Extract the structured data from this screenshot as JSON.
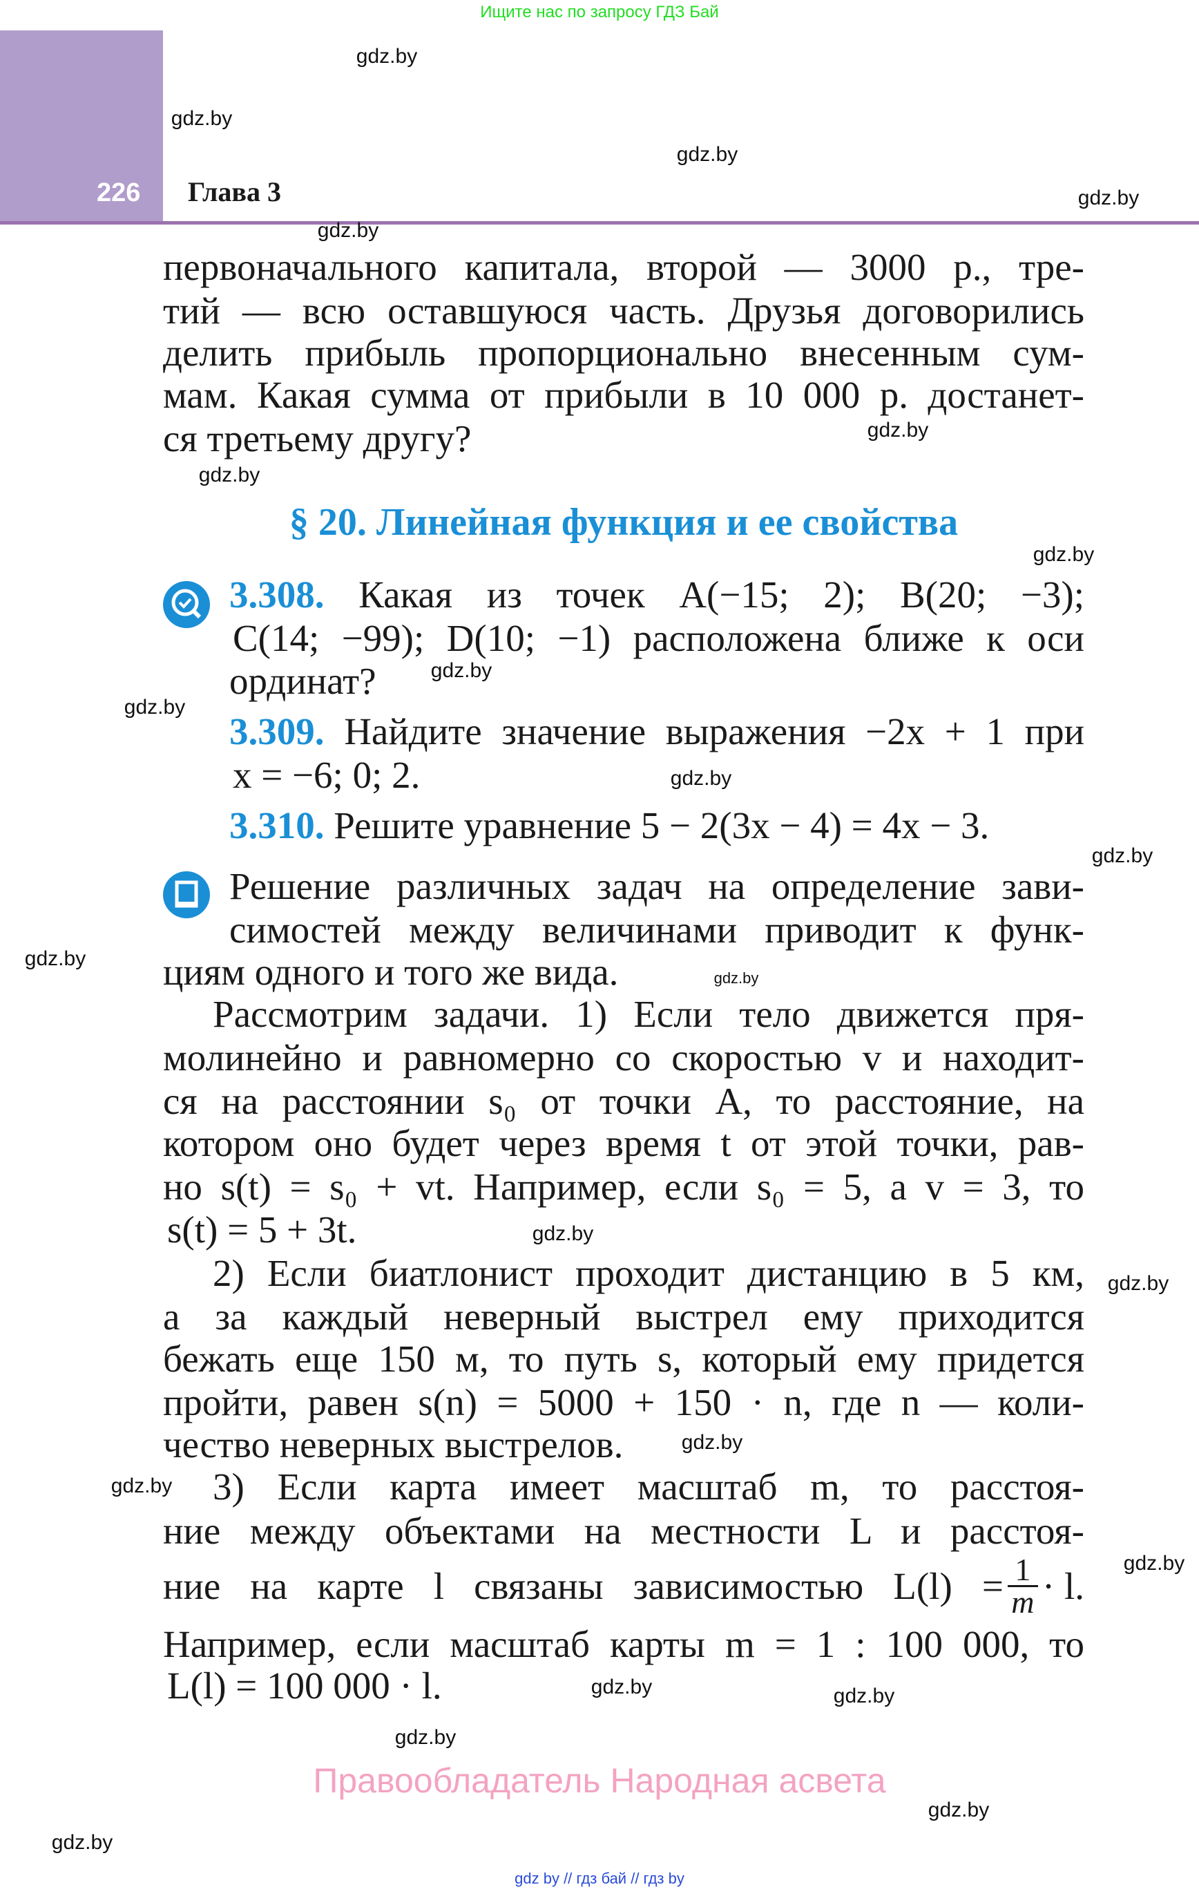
{
  "top_note": "Ищите нас по запросу ГДЗ Бай",
  "header": {
    "page_number": "226",
    "chapter": "Глава 3"
  },
  "colors": {
    "accent": "#1a8fd6",
    "sidebar": "#b09dcb",
    "rule": "#9b72ae",
    "rights": "#f3a3c2"
  },
  "intro_lines": [
    "первоначального капитала, второй — 3000 р., тре-",
    "тий — всю оставшуюся часть. Друзья договорились",
    "делить прибыль пропорционально внесенным сум-",
    "мам. Какая сумма от прибыли в 10 000 р. достанет-",
    "ся третьему другу?"
  ],
  "section_heading": "§ 20. Линейная функция и ее свойства",
  "exercises": [
    {
      "number": "3.308.",
      "icon": "search-check-icon",
      "lines": [
        "Какая из точек A(−15; 2); B(20; −3);",
        "C(14; −99); D(10; −1) расположена ближе к оси",
        "ординат?"
      ]
    },
    {
      "number": "3.309.",
      "lines": [
        "Найдите значение выражения −2x + 1 при",
        "x = −6; 0; 2."
      ]
    },
    {
      "number": "3.310.",
      "lines": [
        "Решите уравнение 5 − 2(3x − 4) = 4x − 3."
      ]
    }
  ],
  "info": {
    "icon": "book-icon",
    "lines": [
      "Решение различных задач на определение зави-",
      "симостей между величинами приводит к функ-",
      "циям одного и того же вида."
    ]
  },
  "p1": [
    "Рассмотрим задачи. 1) Если тело движется пря-",
    "молинейно и равномерно со скоростью v и находит-",
    "ся на расстоянии s₀ от точки A, то расстояние, на",
    "котором оно будет через время t от этой точки, рав-",
    "но s(t) = s₀ + vt. Например, если s₀ = 5, а v = 3, то",
    "s(t) = 5 + 3t."
  ],
  "p2": [
    "2) Если биатлонист проходит дистанцию в 5 км,",
    "а за каждый неверный выстрел ему приходится",
    "бежать еще 150 м, то путь s, который ему придется",
    "пройти, равен s(n) = 5000 + 150 · n, где n — коли-",
    "чество неверных выстрелов."
  ],
  "p3": {
    "line1": "3) Если карта имеет масштаб m, то расстоя-",
    "line2": "ние между объектами на местности L и расстоя-",
    "line3_text": "ние на карте l связаны зависимостью L(l) =",
    "frac_num": "1",
    "frac_den": "m",
    "line3_tail": "· l.",
    "line4": "Например, если масштаб карты m = 1 : 100 000, то",
    "line5": "L(l) = 100 000 · l."
  },
  "rights": "Правообладатель Народная асвета",
  "footer": "gdz by  //  гдз бай  //  гдз by",
  "watermark": "gdz.by"
}
